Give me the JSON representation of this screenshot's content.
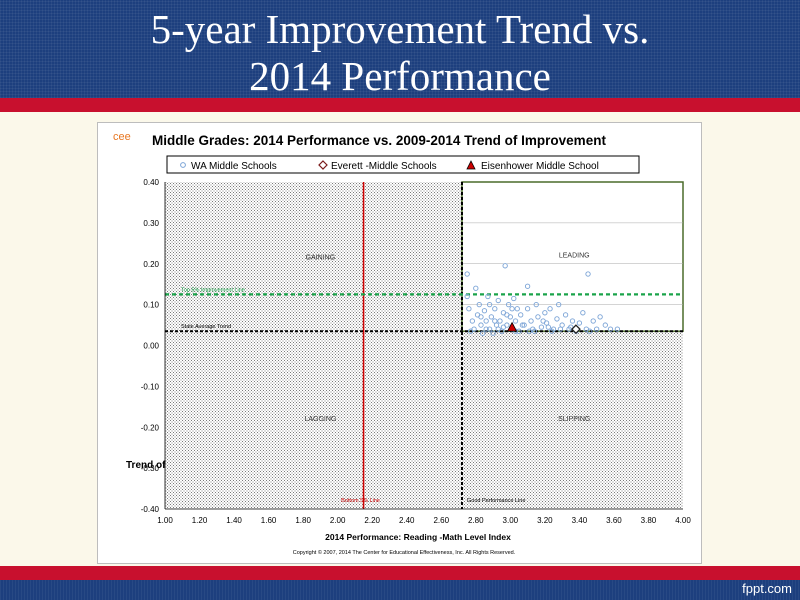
{
  "slide": {
    "title_line1": "5-year Improvement Trend vs.",
    "title_line2": "2014 Performance",
    "footer_credit": "fppt.com",
    "colors": {
      "banner": "#1d3f7e",
      "stripe": "#c8102e",
      "background": "#fbf8ea"
    }
  },
  "chart_data": {
    "type": "scatter",
    "title": "Middle Grades:  2014 Performance vs. 2009-2014 Trend of Improvement",
    "logo_text": "cee",
    "xlabel": "2014 Performance: Reading  -Math Level Index",
    "ylabel": "Trend of",
    "copyright": "Copyright © 2007, 2014 The Center for Educational Effectiveness, Inc.  All Rights Reserved.",
    "xlim": [
      1.0,
      4.0
    ],
    "ylim": [
      -0.4,
      0.4
    ],
    "x_ticks": [
      "1.00",
      "1.20",
      "1.40",
      "1.60",
      "1.80",
      "2.00",
      "2.20",
      "2.40",
      "2.60",
      "2.80",
      "3.00",
      "3.20",
      "3.40",
      "3.60",
      "3.80",
      "4.00"
    ],
    "y_ticks": [
      "0.40",
      "0.30",
      "0.20",
      "0.10",
      "0.00",
      "-0.10",
      "-0.20",
      "-0.30",
      "-0.40"
    ],
    "legend_position": "top",
    "quadrants": [
      {
        "label": "GAINING",
        "x": 1.9,
        "y": 0.21
      },
      {
        "label": "LEADING",
        "x": 3.37,
        "y": 0.215
      },
      {
        "label": "LAGGING",
        "x": 1.9,
        "y": -0.185
      },
      {
        "label": "SLIPPING",
        "x": 3.37,
        "y": -0.185
      }
    ],
    "reference_lines": [
      {
        "orientation": "vertical",
        "value": 2.15,
        "color": "#cc0000",
        "style": "solid",
        "label": "Bottom 5% Line"
      },
      {
        "orientation": "vertical",
        "value": 2.72,
        "color": "#000000",
        "style": "dashed",
        "label": "Good Performance Line"
      },
      {
        "orientation": "horizontal",
        "value": 0.125,
        "color": "#1aa34a",
        "style": "dashed",
        "label": "Top 5% Improvement Line"
      },
      {
        "orientation": "horizontal",
        "value": 0.035,
        "color": "#000000",
        "style": "dashed",
        "label": "State Average Trend"
      }
    ],
    "series": [
      {
        "name": "WA Middle Schools",
        "marker": "circle",
        "color": "#7aa3d6",
        "points": [
          [
            2.75,
            0.175
          ],
          [
            2.75,
            0.12
          ],
          [
            2.76,
            0.09
          ],
          [
            2.78,
            0.06
          ],
          [
            2.79,
            0.04
          ],
          [
            2.8,
            0.14
          ],
          [
            2.81,
            0.075
          ],
          [
            2.82,
            0.1
          ],
          [
            2.83,
            0.05
          ],
          [
            2.84,
            0.03
          ],
          [
            2.85,
            0.085
          ],
          [
            2.86,
            0.06
          ],
          [
            2.87,
            0.12
          ],
          [
            2.88,
            0.04
          ],
          [
            2.89,
            0.07
          ],
          [
            2.9,
            0.03
          ],
          [
            2.91,
            0.09
          ],
          [
            2.92,
            0.05
          ],
          [
            2.93,
            0.11
          ],
          [
            2.94,
            0.06
          ],
          [
            2.95,
            0.035
          ],
          [
            2.96,
            0.08
          ],
          [
            2.97,
            0.195
          ],
          [
            2.98,
            0.05
          ],
          [
            2.99,
            0.1
          ],
          [
            3.0,
            0.07
          ],
          [
            3.01,
            0.04
          ],
          [
            3.02,
            0.115
          ],
          [
            3.03,
            0.06
          ],
          [
            3.04,
            0.09
          ],
          [
            3.05,
            0.035
          ],
          [
            3.06,
            0.075
          ],
          [
            3.08,
            0.05
          ],
          [
            3.1,
            0.145
          ],
          [
            3.1,
            0.09
          ],
          [
            3.12,
            0.06
          ],
          [
            3.13,
            0.04
          ],
          [
            3.15,
            0.1
          ],
          [
            3.16,
            0.07
          ],
          [
            3.18,
            0.045
          ],
          [
            3.2,
            0.08
          ],
          [
            3.21,
            0.055
          ],
          [
            3.23,
            0.09
          ],
          [
            3.25,
            0.04
          ],
          [
            3.27,
            0.065
          ],
          [
            3.28,
            0.1
          ],
          [
            3.3,
            0.05
          ],
          [
            3.32,
            0.075
          ],
          [
            3.34,
            0.04
          ],
          [
            3.36,
            0.06
          ],
          [
            3.38,
            0.035
          ],
          [
            3.4,
            0.055
          ],
          [
            3.42,
            0.08
          ],
          [
            3.44,
            0.04
          ],
          [
            3.45,
            0.175
          ],
          [
            3.48,
            0.06
          ],
          [
            3.5,
            0.04
          ],
          [
            3.52,
            0.07
          ],
          [
            3.55,
            0.05
          ],
          [
            3.58,
            0.04
          ],
          [
            3.62,
            0.04
          ],
          [
            2.77,
            0.035
          ],
          [
            2.83,
            0.07
          ],
          [
            2.88,
            0.1
          ],
          [
            2.93,
            0.04
          ],
          [
            2.98,
            0.075
          ],
          [
            3.03,
            0.035
          ],
          [
            3.07,
            0.05
          ],
          [
            3.14,
            0.035
          ],
          [
            3.19,
            0.06
          ],
          [
            3.24,
            0.035
          ],
          [
            3.29,
            0.04
          ],
          [
            3.35,
            0.045
          ],
          [
            3.46,
            0.035
          ],
          [
            2.86,
            0.04
          ],
          [
            2.91,
            0.06
          ],
          [
            2.96,
            0.045
          ],
          [
            3.01,
            0.09
          ],
          [
            3.11,
            0.035
          ],
          [
            3.22,
            0.045
          ]
        ]
      },
      {
        "name": "Everett -Middle Schools",
        "marker": "diamond",
        "color": "#ffffff",
        "points": [
          [
            3.38,
            0.04
          ]
        ]
      },
      {
        "name": "Eisenhower Middle School",
        "marker": "triangle",
        "color": "#cc0000",
        "points": [
          [
            3.01,
            0.045
          ]
        ]
      }
    ]
  }
}
